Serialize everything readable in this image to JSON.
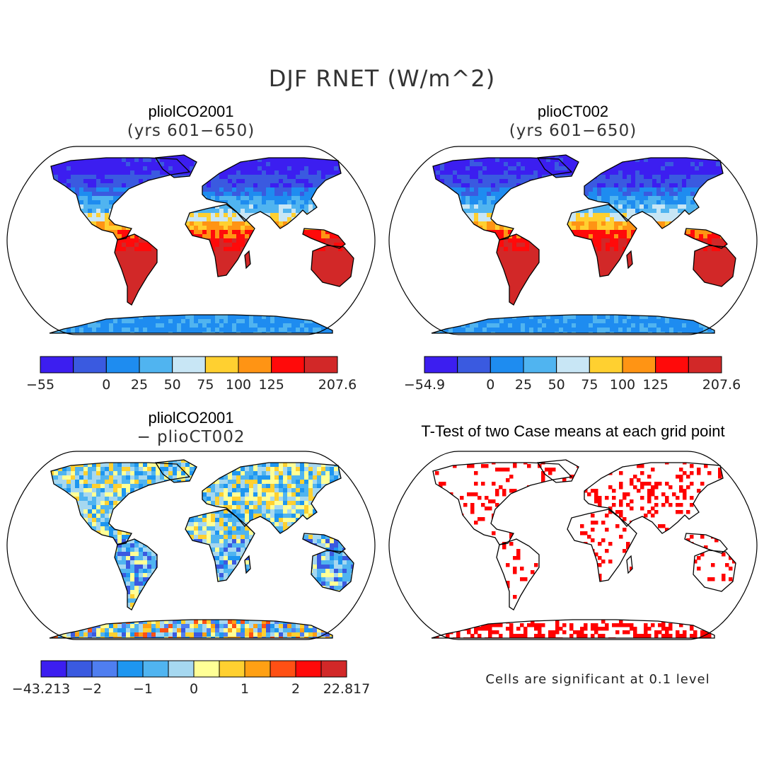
{
  "title": "DJF RNET (W/m^2)",
  "colors": {
    "abs_scale": [
      "#3c1ef0",
      "#3a5ae0",
      "#1e8cf0",
      "#50b4f0",
      "#c8e6f5",
      "#ffd030",
      "#ff9414",
      "#ff0a0a",
      "#d22828"
    ],
    "diff_scale": [
      "#3c1ef0",
      "#3a5ae0",
      "#4f7ef0",
      "#1e96f0",
      "#50b4f0",
      "#a6d8f0",
      "#ffff96",
      "#ffd030",
      "#ffa014",
      "#ff5014",
      "#ff0a0a",
      "#d22828"
    ],
    "significance": "#ff0000",
    "ocean": "#ffffff"
  },
  "panels": [
    {
      "id": "a",
      "title": "pliolCO2001",
      "subtitle": "(yrs 601−650)",
      "legend": {
        "labels": [
          "−55",
          "0",
          "25",
          "50",
          "75",
          "100",
          "125",
          "207.6"
        ],
        "label_bins": [
          0,
          2,
          3,
          4,
          5,
          6,
          7,
          9
        ]
      }
    },
    {
      "id": "b",
      "title": "plioCT002",
      "subtitle": "(yrs 601−650)",
      "legend": {
        "labels": [
          "−54.9",
          "0",
          "25",
          "50",
          "75",
          "100",
          "125",
          "207.6"
        ],
        "label_bins": [
          0,
          2,
          3,
          4,
          5,
          6,
          7,
          9
        ]
      }
    },
    {
      "id": "c",
      "title": "pliolCO2001",
      "subtitle": "− plioCT002",
      "legend": {
        "labels": [
          "−43.213",
          "−2",
          "−1",
          "0",
          "1",
          "2",
          "22.817"
        ],
        "label_bins": [
          0,
          2,
          4,
          6,
          8,
          10,
          12
        ]
      }
    },
    {
      "id": "d",
      "title": "T-Test of two Case means at each grid point",
      "note": "Cells are significant at 0.1 level"
    }
  ]
}
